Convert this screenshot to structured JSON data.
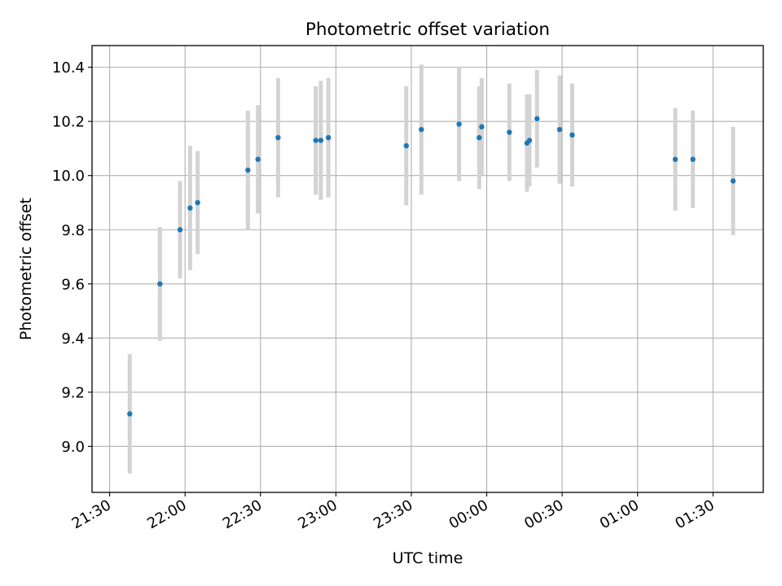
{
  "chart_data": {
    "type": "scatter",
    "title": "Photometric offset variation",
    "xlabel": "UTC time",
    "ylabel": "Photometric offset",
    "x_axis": "time",
    "xlim": [
      "21:23",
      "01:50"
    ],
    "ylim": [
      8.83,
      10.48
    ],
    "xticks": [
      "21:30",
      "22:00",
      "22:30",
      "23:00",
      "23:30",
      "00:00",
      "00:30",
      "01:00",
      "01:30"
    ],
    "yticks": [
      9.0,
      9.2,
      9.4,
      9.6,
      9.8,
      10.0,
      10.2,
      10.4
    ],
    "grid": true,
    "legend": "none",
    "marker_color": "#1f77b4",
    "errorbar_color": "#d3d3d3",
    "points": [
      {
        "x": "21:38",
        "y": 9.12,
        "err": 0.22
      },
      {
        "x": "21:50",
        "y": 9.6,
        "err": 0.21
      },
      {
        "x": "21:58",
        "y": 9.8,
        "err": 0.18
      },
      {
        "x": "22:02",
        "y": 9.88,
        "err": 0.23
      },
      {
        "x": "22:05",
        "y": 9.9,
        "err": 0.19
      },
      {
        "x": "22:25",
        "y": 10.02,
        "err": 0.22
      },
      {
        "x": "22:29",
        "y": 10.06,
        "err": 0.2
      },
      {
        "x": "22:37",
        "y": 10.14,
        "err": 0.22
      },
      {
        "x": "22:52",
        "y": 10.13,
        "err": 0.2
      },
      {
        "x": "22:54",
        "y": 10.13,
        "err": 0.22
      },
      {
        "x": "22:57",
        "y": 10.14,
        "err": 0.22
      },
      {
        "x": "23:28",
        "y": 10.11,
        "err": 0.22
      },
      {
        "x": "23:34",
        "y": 10.17,
        "err": 0.24
      },
      {
        "x": "23:49",
        "y": 10.19,
        "err": 0.21
      },
      {
        "x": "23:57",
        "y": 10.14,
        "err": 0.19
      },
      {
        "x": "23:58",
        "y": 10.18,
        "err": 0.18
      },
      {
        "x": "00:09",
        "y": 10.16,
        "err": 0.18
      },
      {
        "x": "00:16",
        "y": 10.12,
        "err": 0.18
      },
      {
        "x": "00:17",
        "y": 10.13,
        "err": 0.17
      },
      {
        "x": "00:20",
        "y": 10.21,
        "err": 0.18
      },
      {
        "x": "00:29",
        "y": 10.17,
        "err": 0.2
      },
      {
        "x": "00:34",
        "y": 10.15,
        "err": 0.19
      },
      {
        "x": "01:15",
        "y": 10.06,
        "err": 0.19
      },
      {
        "x": "01:22",
        "y": 10.06,
        "err": 0.18
      },
      {
        "x": "01:38",
        "y": 9.98,
        "err": 0.2
      }
    ]
  }
}
